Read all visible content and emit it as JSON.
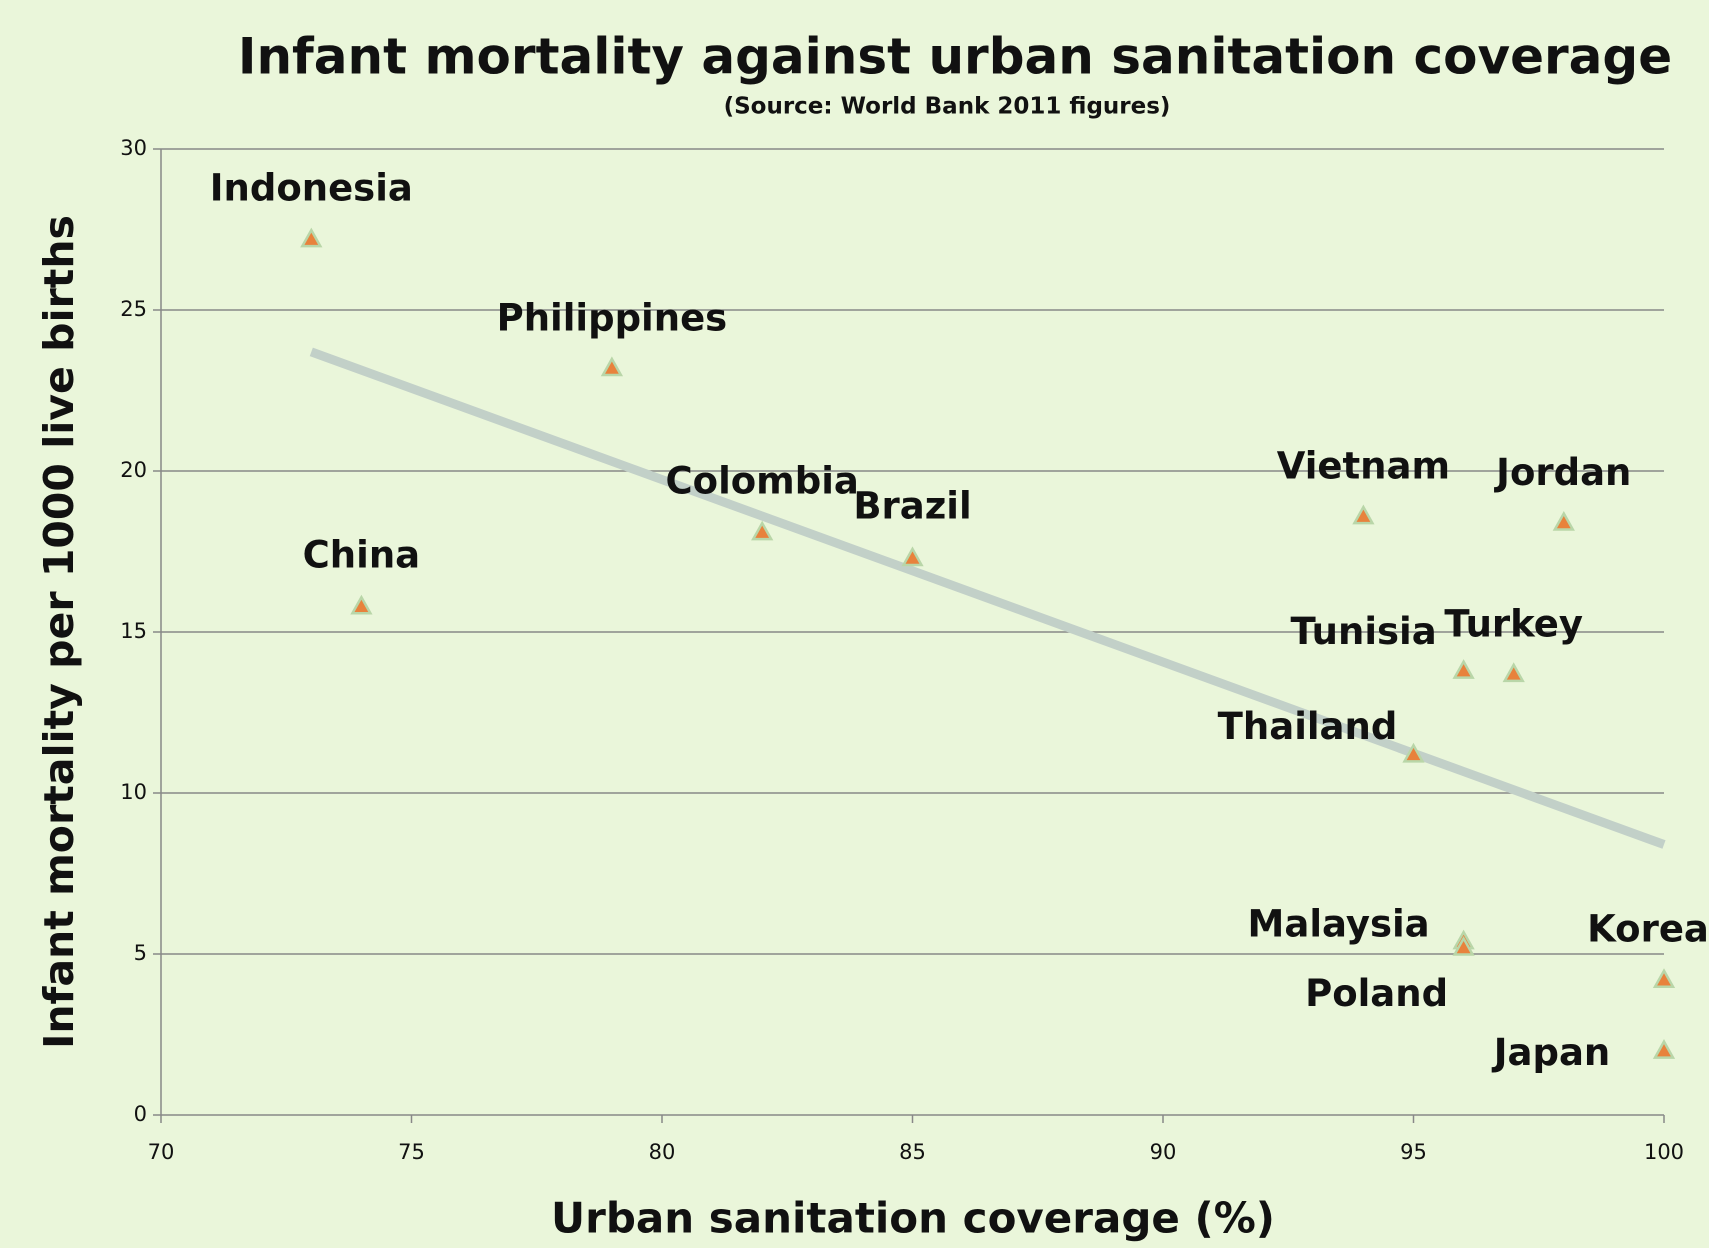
{
  "chart_data": {
    "type": "scatter",
    "title": "Infant mortality against urban sanitation coverage",
    "subtitle": "(Source: World Bank 2011 figures)",
    "xlabel": "Urban sanitation coverage (%)",
    "ylabel": "Infant mortality per 1000 live births",
    "labels": [
      "Indonesia",
      "Philippines",
      "China",
      "Colombia",
      "Brazil",
      "Vietnam",
      "Jordan",
      "Tunisia",
      "Turkey",
      "Thailand",
      "Malaysia",
      "Poland",
      "Korea",
      "Japan"
    ],
    "x": [
      73,
      79,
      74,
      82,
      85,
      94,
      98,
      96,
      97,
      95,
      96,
      96,
      100,
      100
    ],
    "values": [
      27.2,
      23.2,
      15.8,
      18.1,
      17.3,
      18.6,
      18.4,
      13.8,
      13.7,
      11.2,
      5.4,
      5.2,
      4.2,
      2.0
    ],
    "color": "#e8823c",
    "trendline": {
      "x": [
        73,
        100
      ],
      "values": [
        23.7,
        8.4
      ],
      "color": "#c2d0c8"
    },
    "xlim": [
      70,
      100
    ],
    "xticks": [
      70,
      75,
      80,
      85,
      90,
      95,
      100
    ],
    "ylim": [
      0,
      30
    ],
    "yticks": [
      0,
      5,
      10,
      15,
      20,
      25,
      30
    ],
    "grid": true
  }
}
